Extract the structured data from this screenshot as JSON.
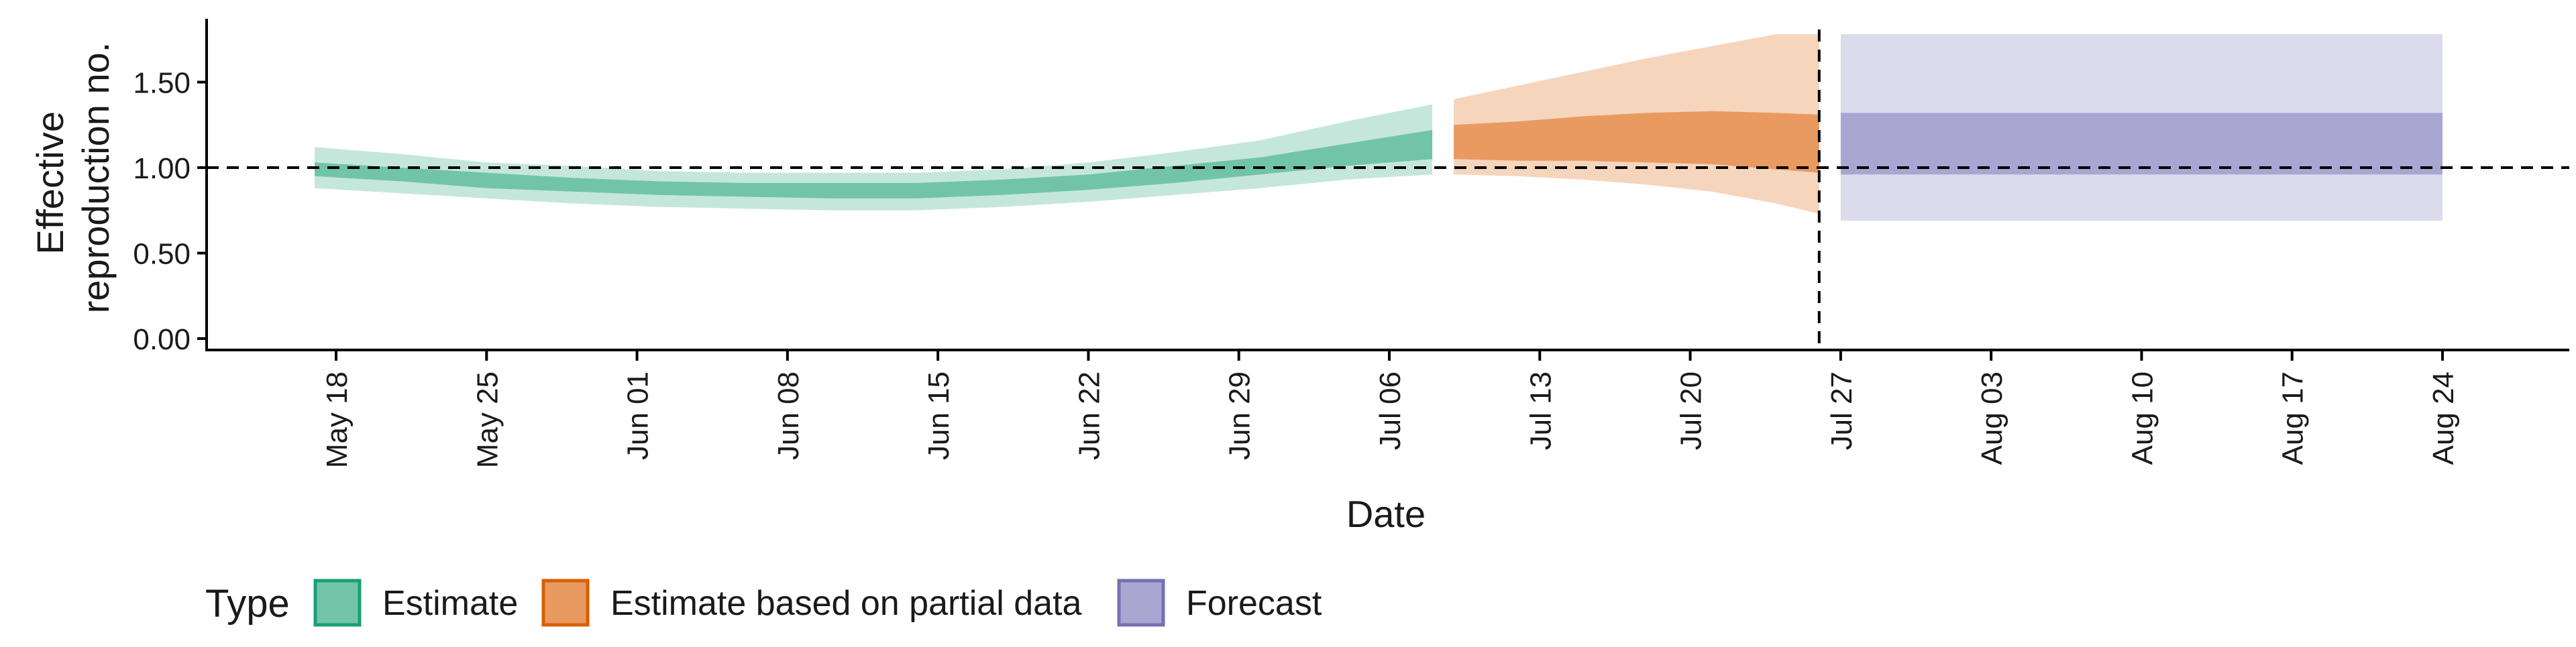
{
  "chart_data": {
    "type": "area",
    "xlabel": "Date",
    "ylabel_lines": [
      "Effective",
      "reproduction no."
    ],
    "ylim": [
      0,
      1.85
    ],
    "y_ticks": [
      {
        "value": 0.0,
        "label": "0.00"
      },
      {
        "value": 0.5,
        "label": "0.50"
      },
      {
        "value": 1.0,
        "label": "1.00"
      },
      {
        "value": 1.5,
        "label": "1.50"
      }
    ],
    "xlim": [
      "2020-05-14",
      "2020-08-31"
    ],
    "x_ticks": [
      {
        "date": "2020-05-18",
        "label": "May 18"
      },
      {
        "date": "2020-05-25",
        "label": "May 25"
      },
      {
        "date": "2020-06-01",
        "label": "Jun 01"
      },
      {
        "date": "2020-06-08",
        "label": "Jun 08"
      },
      {
        "date": "2020-06-15",
        "label": "Jun 15"
      },
      {
        "date": "2020-06-22",
        "label": "Jun 22"
      },
      {
        "date": "2020-06-29",
        "label": "Jun 29"
      },
      {
        "date": "2020-07-06",
        "label": "Jul 06"
      },
      {
        "date": "2020-07-13",
        "label": "Jul 13"
      },
      {
        "date": "2020-07-20",
        "label": "Jul 20"
      },
      {
        "date": "2020-07-27",
        "label": "Jul 27"
      },
      {
        "date": "2020-08-03",
        "label": "Aug 03"
      },
      {
        "date": "2020-08-10",
        "label": "Aug 10"
      },
      {
        "date": "2020-08-17",
        "label": "Aug 17"
      },
      {
        "date": "2020-08-24",
        "label": "Aug 24"
      }
    ],
    "reference_line_y": 1.0,
    "vertical_line_date": "2020-07-26",
    "legend": {
      "title": "Type",
      "position": "bottom-left",
      "entries": [
        {
          "label": "Estimate",
          "fill": "#72c4a8",
          "border": "#1b9e77"
        },
        {
          "label": "Estimate based on partial data",
          "fill": "#e89a61",
          "border": "#d95f02"
        },
        {
          "label": "Forecast",
          "fill": "#a9a6d2",
          "border": "#7570b3"
        }
      ]
    },
    "series": [
      {
        "name": "Estimate",
        "color_inner": "#72c4a8",
        "color_outer": "#c5e7db",
        "points": [
          {
            "date": "2020-05-17",
            "lo90": 0.88,
            "lo50": 0.95,
            "hi50": 1.03,
            "hi90": 1.12
          },
          {
            "date": "2020-05-21",
            "lo90": 0.85,
            "lo50": 0.92,
            "hi50": 1.0,
            "hi90": 1.08
          },
          {
            "date": "2020-05-25",
            "lo90": 0.82,
            "lo50": 0.88,
            "hi50": 0.97,
            "hi90": 1.03
          },
          {
            "date": "2020-05-29",
            "lo90": 0.79,
            "lo50": 0.86,
            "hi50": 0.94,
            "hi90": 1.01
          },
          {
            "date": "2020-06-02",
            "lo90": 0.77,
            "lo50": 0.84,
            "hi50": 0.92,
            "hi90": 0.98
          },
          {
            "date": "2020-06-06",
            "lo90": 0.76,
            "lo50": 0.83,
            "hi50": 0.91,
            "hi90": 0.97
          },
          {
            "date": "2020-06-10",
            "lo90": 0.75,
            "lo50": 0.82,
            "hi50": 0.91,
            "hi90": 0.97
          },
          {
            "date": "2020-06-14",
            "lo90": 0.75,
            "lo50": 0.82,
            "hi50": 0.91,
            "hi90": 0.97
          },
          {
            "date": "2020-06-18",
            "lo90": 0.77,
            "lo50": 0.84,
            "hi50": 0.93,
            "hi90": 0.99
          },
          {
            "date": "2020-06-22",
            "lo90": 0.8,
            "lo50": 0.87,
            "hi50": 0.96,
            "hi90": 1.03
          },
          {
            "date": "2020-06-26",
            "lo90": 0.84,
            "lo50": 0.91,
            "hi50": 1.01,
            "hi90": 1.09
          },
          {
            "date": "2020-06-30",
            "lo90": 0.88,
            "lo50": 0.96,
            "hi50": 1.06,
            "hi90": 1.16
          },
          {
            "date": "2020-07-04",
            "lo90": 0.93,
            "lo50": 1.01,
            "hi50": 1.14,
            "hi90": 1.27
          },
          {
            "date": "2020-07-08",
            "lo90": 0.96,
            "lo50": 1.05,
            "hi50": 1.22,
            "hi90": 1.37
          }
        ]
      },
      {
        "name": "Estimate based on partial data",
        "color_inner": "#e89a61",
        "color_outer": "#f6d5bd",
        "points": [
          {
            "date": "2020-07-09",
            "lo90": 0.96,
            "lo50": 1.05,
            "hi50": 1.25,
            "hi90": 1.4
          },
          {
            "date": "2020-07-12",
            "lo90": 0.95,
            "lo50": 1.04,
            "hi50": 1.27,
            "hi90": 1.48
          },
          {
            "date": "2020-07-15",
            "lo90": 0.93,
            "lo50": 1.04,
            "hi50": 1.3,
            "hi90": 1.56
          },
          {
            "date": "2020-07-18",
            "lo90": 0.9,
            "lo50": 1.03,
            "hi50": 1.32,
            "hi90": 1.64
          },
          {
            "date": "2020-07-21",
            "lo90": 0.86,
            "lo50": 1.02,
            "hi50": 1.33,
            "hi90": 1.71
          },
          {
            "date": "2020-07-24",
            "lo90": 0.79,
            "lo50": 0.99,
            "hi50": 1.32,
            "hi90": 1.78
          },
          {
            "date": "2020-07-26",
            "lo90": 0.73,
            "lo50": 0.97,
            "hi50": 1.31,
            "hi90": 1.78
          }
        ]
      },
      {
        "name": "Forecast",
        "color_inner": "#a9a6d2",
        "color_outer": "#dcdbec",
        "points": [
          {
            "date": "2020-07-27",
            "lo90": 0.69,
            "lo50": 0.96,
            "hi50": 1.32,
            "hi90": 1.78
          },
          {
            "date": "2020-08-24",
            "lo90": 0.69,
            "lo50": 0.96,
            "hi50": 1.32,
            "hi90": 1.78
          }
        ]
      }
    ]
  }
}
